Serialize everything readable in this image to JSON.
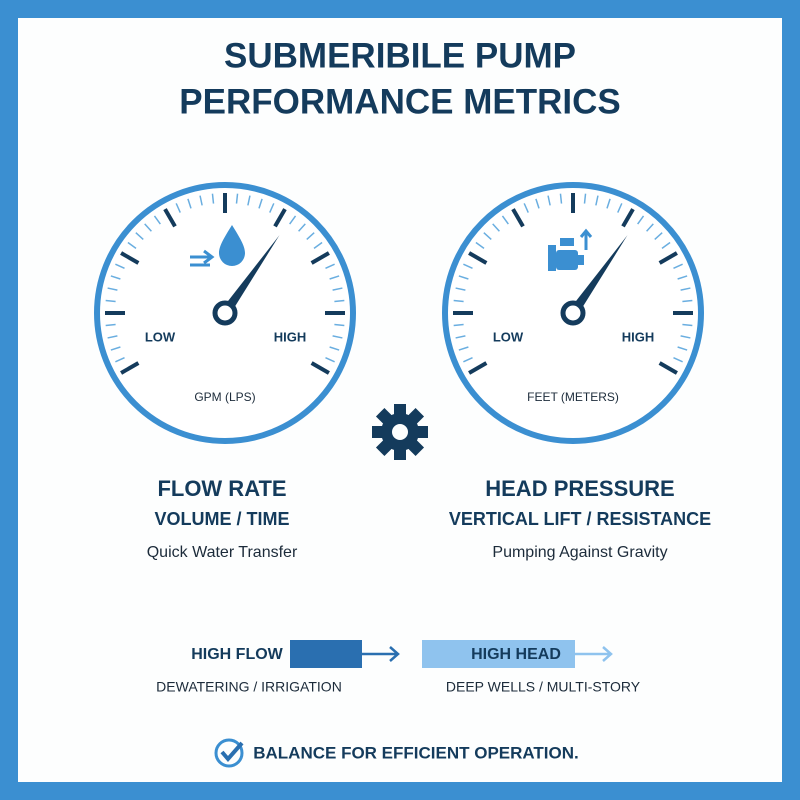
{
  "header": {
    "title_lines": [
      "SUBMERIBILE PUMP",
      "PERFORMANCE METRICS"
    ]
  },
  "gauges": [
    {
      "low": "LOW",
      "high": "HIGH",
      "unit": "GPM (LPS)",
      "title": "FLOW RATE",
      "subtitle": "VOLUME / TIME",
      "description": "Quick Water Transfer"
    },
    {
      "low": "LOW",
      "high": "HIGH",
      "unit": "FEET (METERS)",
      "title": "HEAD PRESSURE",
      "subtitle": "VERTICAL LIFT / RESISTANCE",
      "description": "Pumping Against Gravity"
    }
  ],
  "comparison": [
    {
      "label": "HIGH FLOW",
      "use": "DEWATERING / IRRIGATION"
    },
    {
      "label": "HIGH HEAD",
      "use": "DEEP WELLS / MULTI-STORY"
    }
  ],
  "footer": {
    "text": "BALANCE FOR EFFICIENT OPERATION."
  }
}
